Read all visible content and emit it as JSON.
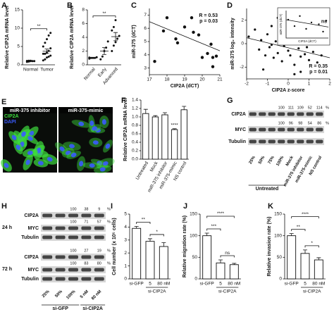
{
  "chart_data": [
    {
      "panel": "A",
      "type": "dot",
      "ylabel": "Relative CIP2A mRNA level",
      "categories": [
        "Normal",
        "Tumor"
      ],
      "values": [
        [
          0.8,
          0.9,
          1,
          1,
          1,
          1.05,
          1.1,
          1.1
        ],
        [
          1.2,
          1.5,
          2,
          2.2,
          2.5,
          3,
          3,
          3.3,
          3.8,
          4.5,
          5,
          6,
          7,
          8,
          8.7
        ]
      ],
      "means": [
        1,
        3.7
      ],
      "errors": [
        0.05,
        0.6
      ],
      "ylim": [
        0,
        15
      ],
      "yticks": [
        0,
        5,
        10,
        15
      ],
      "significance": [
        {
          "pair": [
            0,
            1
          ],
          "label": "**"
        }
      ]
    },
    {
      "panel": "B",
      "type": "dot",
      "ylabel": "Relative CIP2A mRNA level",
      "categories": [
        "Normal",
        "Early",
        "Advanced"
      ],
      "values": [
        [
          0.9,
          1,
          1,
          1,
          1.1,
          1.05
        ],
        [
          0.8,
          1.2,
          2,
          2.5,
          3.4
        ],
        [
          2,
          2.8,
          3.3,
          3.8,
          4.2,
          5,
          5.5,
          6.5
        ]
      ],
      "means": [
        1,
        2,
        4.1
      ],
      "errors": [
        0.05,
        0.5,
        0.6
      ],
      "ylim": [
        0,
        8
      ],
      "yticks": [
        0,
        2,
        4,
        6,
        8
      ],
      "significance": [
        {
          "pair": [
            0,
            2
          ],
          "label": "**"
        }
      ]
    },
    {
      "panel": "C",
      "type": "scatter",
      "xlabel": "CIP2A (dCT)",
      "ylabel": "miR-375 (dCT)",
      "x": [
        17.3,
        17.8,
        18.0,
        18.5,
        18.6,
        19.0,
        19.4,
        19.5,
        19.8,
        20.0,
        20.3,
        20.5,
        20.6,
        20.8,
        20.6
      ],
      "y": [
        3.5,
        5.8,
        6.8,
        5.2,
        4.9,
        6.1,
        6.8,
        5.7,
        5.5,
        3.8,
        4.1,
        4.8,
        3.8,
        3.9,
        3.1
      ],
      "trendline": [
        [
          17,
          6.5
        ],
        [
          21,
          4.3
        ]
      ],
      "xlim": [
        17,
        21
      ],
      "xticks": [
        17,
        18,
        19,
        20,
        21
      ],
      "ylim": [
        2.5,
        7.5
      ],
      "yticks": [
        3,
        4,
        5,
        6,
        7
      ],
      "annotations": [
        "R = 0.53",
        "p = 0.03"
      ]
    },
    {
      "panel": "D",
      "type": "scatter",
      "xlabel": "CIP2A z-score",
      "ylabel": "miR-375 log₂ intensity",
      "x": [
        -1.9,
        -1.6,
        -1.4,
        -1.3,
        -1.1,
        -1.0,
        -0.9,
        -0.8,
        -0.7,
        -0.6,
        -0.5,
        -0.4,
        -0.3,
        -0.2,
        -0.1,
        0,
        0.1,
        0.2,
        0.3,
        0.4,
        0.5,
        0.6,
        0.7,
        0.8,
        0.9,
        1.0,
        1.1,
        1.2,
        1.4,
        -0.5,
        0.2,
        -1.2,
        0.6,
        1.6,
        -0.8,
        0.3
      ],
      "y": [
        0.6,
        1.2,
        -0.5,
        0.3,
        -1.0,
        0.8,
        -0.3,
        1.5,
        -1.2,
        0.2,
        -0.8,
        0.5,
        -1.5,
        -0.2,
        0.9,
        -0.6,
        -1.0,
        0.1,
        -1.8,
        0.4,
        -0.4,
        -1.1,
        0.2,
        -0.9,
        -0.3,
        -1.4,
        0.3,
        -0.7,
        -1.6,
        2.2,
        2.5,
        -2.2,
        -2.4,
        -1.0,
        -0.1,
        -2.6
      ],
      "trendline": [
        [
          -2,
          0.5
        ],
        [
          2,
          -1.2
        ]
      ],
      "xlim": [
        -2,
        2
      ],
      "xticks": [
        -2,
        -1,
        0,
        1,
        2
      ],
      "ylim": [
        -3,
        3
      ],
      "yticks": [
        -2,
        0,
        2
      ],
      "annotations": [
        "R = 0.35",
        "p = 0.01"
      ],
      "inset": {
        "xlabel": "CIP2A (dCT)",
        "ylabel": "miR-375 (dCT)",
        "x": [
          17.2,
          17.8,
          18.3,
          18.9,
          19.4,
          20.1,
          20.5,
          20.8
        ],
        "y": [
          6.5,
          5.8,
          6.9,
          5.5,
          6.2,
          6.0,
          5.2,
          6.4
        ],
        "trendline": [
          [
            17,
            6.5
          ],
          [
            21,
            5.7
          ]
        ],
        "xlim": [
          17,
          21
        ],
        "ylim": [
          4.5,
          7.5
        ],
        "annotation": "ns"
      }
    },
    {
      "panel": "F",
      "type": "bar",
      "ylabel": "Relative CIP2A mRNA level",
      "categories": [
        "Untreated",
        "Mock",
        "miR-375 inhibitor",
        "miR-375-mimic",
        "NS control"
      ],
      "values": [
        1.08,
        1.0,
        1.05,
        0.7,
        1.17
      ],
      "errors": [
        0.1,
        0.03,
        0.05,
        0.02,
        0.08
      ],
      "ylim": [
        0,
        1.4
      ],
      "yticks": [
        {
          "value": 0,
          "label": "0.0"
        },
        0.2,
        0.4,
        0.6,
        0.8,
        {
          "value": 1,
          "label": "1.0"
        },
        1.2,
        1.4
      ],
      "significance": [
        {
          "pair": [
            3,
            3
          ],
          "label": "****"
        }
      ]
    },
    {
      "panel": "I",
      "type": "bar",
      "ylabel": "Cell number (x 10⁵ cells)",
      "categories": [
        "si-GFP",
        "5",
        "80 nM"
      ],
      "group_label": {
        "label": "si-CIP2A",
        "span": [
          1,
          2
        ]
      },
      "values": [
        3.9,
        2.9,
        2.5
      ],
      "errors": [
        0.15,
        0.2,
        0.3
      ],
      "ylim": [
        0,
        5
      ],
      "yticks": [
        0,
        1,
        2,
        3,
        4,
        5
      ],
      "significance": [
        {
          "pair": [
            0,
            1
          ],
          "label": "**"
        },
        {
          "pair": [
            1,
            2
          ],
          "label": "*"
        }
      ]
    },
    {
      "panel": "J",
      "type": "bar",
      "ylabel": "Relative migration rate (%)",
      "categories": [
        "si-GFP",
        "5",
        "80 nM"
      ],
      "group_label": {
        "label": "si-CIP2A",
        "span": [
          1,
          2
        ]
      },
      "values": [
        100,
        37,
        33
      ],
      "errors": [
        6,
        7,
        3
      ],
      "ylim": [
        0,
        150
      ],
      "yticks": [
        0,
        50,
        100,
        150
      ],
      "significance": [
        {
          "pair": [
            0,
            2
          ],
          "label": "****"
        },
        {
          "pair": [
            0,
            1
          ],
          "label": "***"
        },
        {
          "pair": [
            1,
            2
          ],
          "label": "ns"
        }
      ]
    },
    {
      "panel": "K",
      "type": "bar",
      "ylabel": "Relative invasion rate (%)",
      "categories": [
        "si-GFP",
        "5",
        "80 nM"
      ],
      "group_label": {
        "label": "si-CIP2A",
        "span": [
          1,
          2
        ]
      },
      "values": [
        100,
        59,
        44
      ],
      "errors": [
        5,
        8,
        5
      ],
      "ylim": [
        0,
        150
      ],
      "yticks": [
        0,
        50,
        100,
        150
      ],
      "significance": [
        {
          "pair": [
            0,
            2
          ],
          "label": "****"
        },
        {
          "pair": [
            0,
            1
          ],
          "label": "**"
        },
        {
          "pair": [
            1,
            2
          ],
          "label": "*"
        }
      ]
    }
  ],
  "images": {
    "panel": "E",
    "panes": [
      "miR-375 inhibitor",
      "miR-375-mimic"
    ],
    "channels": [
      {
        "name": "CIP2A",
        "color": "#3ddc3d"
      },
      {
        "name": "DAPI",
        "color": "#3a5bff"
      }
    ]
  },
  "blots": [
    {
      "panel": "G",
      "lanes": [
        "25%",
        "50%",
        "75%",
        "100%",
        "Mock",
        "miR-375 inhibitor",
        "miR-375-mimic",
        "NS control"
      ],
      "groups": [
        {
          "label": "Untreated",
          "span": [
            0,
            3
          ]
        }
      ],
      "sections": [
        {
          "rows": [
            {
              "name": "CIP2A",
              "quant": [
                null,
                null,
                null,
                100,
                111,
                109,
                52,
                114
              ],
              "unit": "%"
            },
            {
              "name": "MYC",
              "quant": [
                null,
                null,
                null,
                100,
                96,
                98,
                54,
                86
              ],
              "unit": "%"
            },
            {
              "name": "Tubulin"
            }
          ]
        }
      ]
    },
    {
      "panel": "H",
      "lanes": [
        "25%",
        "50%",
        "100%",
        "5 nM",
        "80 nM"
      ],
      "groups": [
        {
          "label": "si-GFP",
          "span": [
            0,
            2
          ]
        },
        {
          "label": "si-CIP2A",
          "span": [
            3,
            4
          ]
        }
      ],
      "sections": [
        {
          "label": "24 h",
          "rows": [
            {
              "name": "CIP2A",
              "quant": [
                null,
                null,
                100,
                38,
                9
              ],
              "unit": "%"
            },
            {
              "name": "MYC",
              "quant": [
                null,
                null,
                100,
                71,
                57
              ],
              "unit": "%"
            },
            {
              "name": "Tubulin"
            }
          ]
        },
        {
          "label": "72 h",
          "rows": [
            {
              "name": "CIP2A",
              "quant": [
                null,
                null,
                100,
                27,
                19
              ],
              "unit": "%"
            },
            {
              "name": "MYC",
              "quant": [
                null,
                null,
                100,
                83,
                80
              ],
              "unit": "%"
            },
            {
              "name": "Tubulin"
            }
          ]
        }
      ]
    }
  ]
}
